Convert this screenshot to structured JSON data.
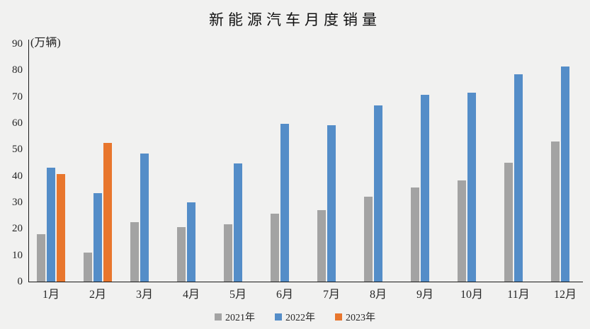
{
  "chart_data": {
    "type": "bar",
    "title": "新能源汽车月度销量",
    "unit_label": "(万辆)",
    "categories": [
      "1月",
      "2月",
      "3月",
      "4月",
      "5月",
      "6月",
      "7月",
      "8月",
      "9月",
      "10月",
      "11月",
      "12月"
    ],
    "series": [
      {
        "name": "2021年",
        "color": "#a3a3a3",
        "values": [
          17.9,
          11.0,
          22.6,
          20.6,
          21.7,
          25.6,
          27.1,
          32.1,
          35.7,
          38.3,
          45.0,
          53.1
        ]
      },
      {
        "name": "2022年",
        "color": "#548dc8",
        "values": [
          43.1,
          33.4,
          48.4,
          29.9,
          44.7,
          59.6,
          59.3,
          66.6,
          70.8,
          71.4,
          78.6,
          81.4
        ]
      },
      {
        "name": "2023年",
        "color": "#e8762d",
        "values": [
          40.8,
          52.5,
          null,
          null,
          null,
          null,
          null,
          null,
          null,
          null,
          null,
          null
        ]
      }
    ],
    "ylim": [
      0,
      90
    ],
    "y_ticks": [
      0,
      10,
      20,
      30,
      40,
      50,
      60,
      70,
      80,
      90
    ],
    "grid": false,
    "legend_position": "bottom",
    "background_color": "#f1f1f0",
    "axis_color": "#1a1a1a"
  }
}
